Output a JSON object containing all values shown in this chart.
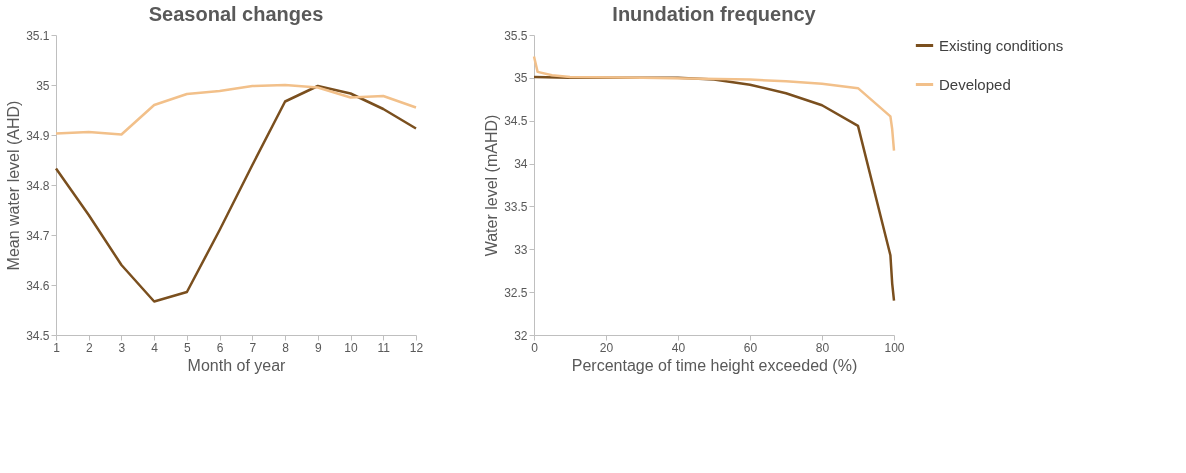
{
  "chart_data": [
    {
      "type": "line",
      "title": "Seasonal changes",
      "xlabel": "Month of year",
      "ylabel": "Mean water level (AHD)",
      "x": [
        1,
        2,
        3,
        4,
        5,
        6,
        7,
        8,
        9,
        10,
        11,
        12
      ],
      "series": [
        {
          "color": "#7a4f1e",
          "values": [
            34.833,
            34.74,
            34.64,
            34.567,
            34.586,
            34.71,
            34.84,
            34.967,
            34.998,
            34.983,
            34.952,
            34.913
          ]
        },
        {
          "color": "#f2c08a",
          "values": [
            34.903,
            34.906,
            34.901,
            34.96,
            34.982,
            34.988,
            34.998,
            35.0,
            34.995,
            34.975,
            34.978,
            34.955
          ]
        }
      ],
      "xlim": [
        1,
        12
      ],
      "xticks": [
        1,
        2,
        3,
        4,
        5,
        6,
        7,
        8,
        9,
        10,
        11,
        12
      ],
      "ylim": [
        34.5,
        35.1
      ],
      "yticks": [
        34.5,
        34.6,
        34.7,
        34.8,
        34.9,
        {
          "value": 35.0,
          "label": "35"
        },
        35.1
      ],
      "grid": false,
      "legend": false
    },
    {
      "type": "line",
      "title": "Inundation frequency",
      "xlabel": "Percentage of time height exceeded (%)",
      "ylabel": "Water level (mAHD)",
      "series": [
        {
          "name": "Existing conditions",
          "color": "#7a4f1e",
          "x": [
            0,
            10,
            40,
            50,
            60,
            70,
            80,
            90,
            99,
            99.5,
            100
          ],
          "values": [
            35.01,
            35.0,
            35.0,
            34.98,
            34.92,
            34.82,
            34.68,
            34.44,
            32.93,
            32.6,
            32.4
          ]
        },
        {
          "name": "Developed",
          "color": "#f2c08a",
          "x": [
            0,
            1,
            5,
            10,
            30,
            60,
            70,
            80,
            90,
            99,
            99.5,
            100
          ],
          "values": [
            35.25,
            35.07,
            35.03,
            35.01,
            35.0,
            34.98,
            34.96,
            34.93,
            34.88,
            34.55,
            34.4,
            34.15
          ]
        }
      ],
      "xlim": [
        0,
        100
      ],
      "xticks": [
        0,
        20,
        40,
        60,
        80,
        100
      ],
      "ylim": [
        32,
        35.5
      ],
      "yticks": [
        32,
        32.5,
        33,
        33.5,
        34,
        34.5,
        35,
        35.5
      ],
      "grid": false,
      "legend": "right"
    }
  ]
}
